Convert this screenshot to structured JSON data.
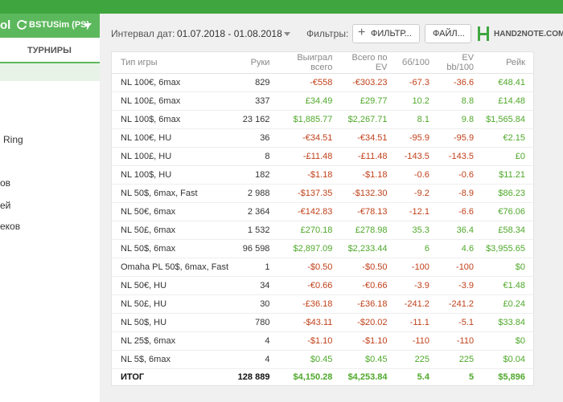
{
  "sidebar": {
    "logo_fragment": "ol",
    "account": "BSTUSim (PS)",
    "tab": "ТУРНИРЫ",
    "items": [
      "Ring",
      "ов",
      "ей",
      "еков"
    ]
  },
  "toolbar": {
    "interval_label": "Интервал дат:",
    "date_range": "01.07.2018 - 01.08.2018",
    "filters_label": "Фильтры:",
    "filter_button": "ФИЛЬТР...",
    "file_button": "ФАЙЛ...",
    "brand": "HAND2NOTE.COM"
  },
  "table": {
    "headers": [
      "Тип игры",
      "Руки",
      "Выиграл всего",
      "Всего по EV",
      "бб/100",
      "EV bb/100",
      "Рейк"
    ],
    "rows": [
      [
        "NL 100€, 6max",
        "829",
        "-€558",
        "-€303.23",
        "-67.3",
        "-36.6",
        "€48.41"
      ],
      [
        "NL 100£, 6max",
        "337",
        "£34.49",
        "£29.77",
        "10.2",
        "8.8",
        "£14.48"
      ],
      [
        "NL 100$, 6max",
        "23 162",
        "$1,885.77",
        "$2,267.71",
        "8.1",
        "9.8",
        "$1,565.84"
      ],
      [
        "NL 100€, HU",
        "36",
        "-€34.51",
        "-€34.51",
        "-95.9",
        "-95.9",
        "€2.15"
      ],
      [
        "NL 100£, HU",
        "8",
        "-£11.48",
        "-£11.48",
        "-143.5",
        "-143.5",
        "£0"
      ],
      [
        "NL 100$, HU",
        "182",
        "-$1.18",
        "-$1.18",
        "-0.6",
        "-0.6",
        "$11.21"
      ],
      [
        "NL 50$, 6max, Fast",
        "2 988",
        "-$137.35",
        "-$132.30",
        "-9.2",
        "-8.9",
        "$86.23"
      ],
      [
        "NL 50€, 6max",
        "2 364",
        "-€142.83",
        "-€78.13",
        "-12.1",
        "-6.6",
        "€76.06"
      ],
      [
        "NL 50£, 6max",
        "1 532",
        "£270.18",
        "£278.98",
        "35.3",
        "36.4",
        "£58.34"
      ],
      [
        "NL 50$, 6max",
        "96 598",
        "$2,897.09",
        "$2,233.44",
        "6",
        "4.6",
        "$3,955.65"
      ],
      [
        "Omaha PL 50$, 6max, Fast",
        "1",
        "-$0.50",
        "-$0.50",
        "-100",
        "-100",
        "$0"
      ],
      [
        "NL 50€, HU",
        "34",
        "-€0.66",
        "-€0.66",
        "-3.9",
        "-3.9",
        "€1.48"
      ],
      [
        "NL 50£, HU",
        "30",
        "-£36.18",
        "-£36.18",
        "-241.2",
        "-241.2",
        "£0.24"
      ],
      [
        "NL 50$, HU",
        "780",
        "-$43.11",
        "-$20.02",
        "-11.1",
        "-5.1",
        "$33.84"
      ],
      [
        "NL 25$, 6max",
        "4",
        "-$1.10",
        "-$1.10",
        "-110",
        "-110",
        "$0"
      ],
      [
        "NL 5$, 6max",
        "4",
        "$0.45",
        "$0.45",
        "225",
        "225",
        "$0.04"
      ]
    ],
    "total": [
      "ИТОГ",
      "128 889",
      "$4,150.28",
      "$4,253.84",
      "5.4",
      "5",
      "$5,896"
    ]
  },
  "colors": {
    "accent": "#5cb85c",
    "topbar": "#3fa63f",
    "negative": "#c0411a",
    "positive": "#4fa82a"
  }
}
